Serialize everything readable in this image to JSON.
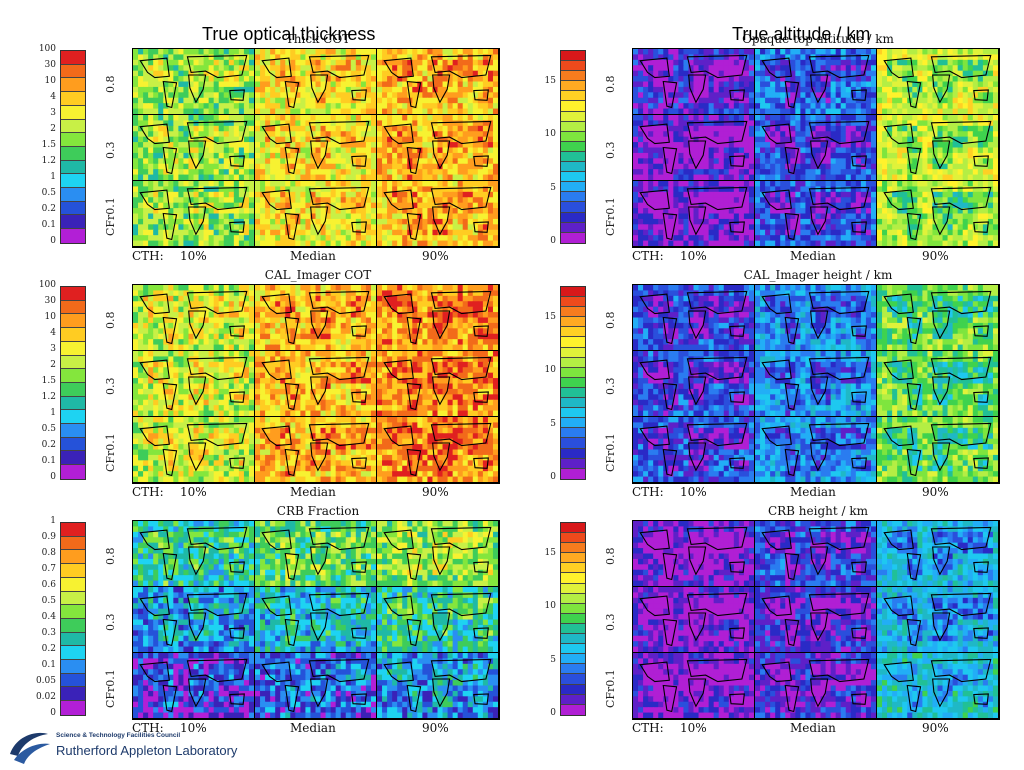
{
  "overlay": {
    "left_title": "True optical thickness",
    "right_title": "True altitude / km"
  },
  "row_labels": [
    "0.8",
    "0.3",
    "CFr0.1"
  ],
  "footer_labels": [
    "CTH:",
    "10%",
    "Median",
    "90%"
  ],
  "logo": {
    "small": "Science & Technology Facilities Council",
    "big": "Rutherford Appleton Laboratory"
  },
  "scales": {
    "cot": {
      "labels": [
        "100",
        "30",
        "10",
        "4",
        "3",
        "2",
        "1.5",
        "1.2",
        "1",
        "0.5",
        "0.2",
        "0.1",
        "0"
      ],
      "colors": [
        "#e02020",
        "#f26a1a",
        "#ff9d1e",
        "#ffcc22",
        "#f7f231",
        "#c8f046",
        "#84e63d",
        "#3ecc5a",
        "#1fb9a6",
        "#1ed3f2",
        "#2a8ef2",
        "#2552d9",
        "#3a22b8",
        "#b21fd6"
      ]
    },
    "height": {
      "labels": [
        "15",
        "10",
        "5",
        "0"
      ],
      "label_values": [
        15,
        10,
        5,
        0
      ],
      "max": 18,
      "colors": [
        "#d8181a",
        "#ee4a1c",
        "#f77c1e",
        "#ffaa22",
        "#ffd024",
        "#fff22c",
        "#e0f23a",
        "#b4ee44",
        "#7ee53e",
        "#3fd24e",
        "#21c096",
        "#1fb8c6",
        "#1ec8f0",
        "#22aef6",
        "#2a7cf0",
        "#2a4fdc",
        "#2a2ac6",
        "#5e20c8",
        "#b01fd4"
      ]
    },
    "fraction": {
      "labels": [
        "1",
        "0.9",
        "0.8",
        "0.7",
        "0.6",
        "0.5",
        "0.4",
        "0.3",
        "0.2",
        "0.1",
        "0.05",
        "0.02",
        "0"
      ],
      "colors": [
        "#e02020",
        "#f26a1a",
        "#ff9d1e",
        "#ffcc22",
        "#f7f231",
        "#c8f046",
        "#84e63d",
        "#3ecc5a",
        "#1fb9a6",
        "#1ed3f2",
        "#2a8ef2",
        "#2552d9",
        "#3a22b8",
        "#b21fd6"
      ]
    }
  },
  "chart_data": [
    {
      "type": "heatmap",
      "title": "Thick COT",
      "colorbar": "cot",
      "rows": [
        "0.8",
        "0.3",
        "CFr0.1"
      ],
      "columns": [
        "10%",
        "Median",
        "90%"
      ],
      "dominant_level": [
        [
          6,
          4,
          3
        ],
        [
          6,
          4,
          3
        ],
        [
          6,
          4,
          3
        ]
      ]
    },
    {
      "type": "heatmap",
      "title": "Opaque top altitude / km",
      "colorbar": "height",
      "rows": [
        "0.8",
        "0.3",
        "CFr0.1"
      ],
      "columns": [
        "10%",
        "Median",
        "90%"
      ],
      "dominant_level": [
        [
          16,
          14,
          6
        ],
        [
          17,
          15,
          6
        ],
        [
          17,
          15,
          7
        ]
      ]
    },
    {
      "type": "heatmap",
      "title": "CAL_Imager COT",
      "colorbar": "cot",
      "rows": [
        "0.8",
        "0.3",
        "CFr0.1"
      ],
      "columns": [
        "10%",
        "Median",
        "90%"
      ],
      "dominant_level": [
        [
          5,
          3,
          2
        ],
        [
          5,
          3,
          2
        ],
        [
          5,
          3,
          2
        ]
      ]
    },
    {
      "type": "heatmap",
      "title": "CAL_Imager height / km",
      "colorbar": "height",
      "rows": [
        "0.8",
        "0.3",
        "CFr0.1"
      ],
      "columns": [
        "10%",
        "Median",
        "90%"
      ],
      "dominant_level": [
        [
          15,
          13,
          8
        ],
        [
          15,
          13,
          8
        ],
        [
          15,
          13,
          8
        ]
      ]
    },
    {
      "type": "heatmap",
      "title": "CRB Fraction",
      "colorbar": "fraction",
      "rows": [
        "0.8",
        "0.3",
        "CFr0.1"
      ],
      "columns": [
        "10%",
        "Median",
        "90%"
      ],
      "dominant_level": [
        [
          8,
          7,
          6
        ],
        [
          10,
          9,
          8
        ],
        [
          12,
          11,
          10
        ]
      ]
    },
    {
      "type": "heatmap",
      "title": "CRB height / km",
      "colorbar": "height",
      "rows": [
        "0.8",
        "0.3",
        "CFr0.1"
      ],
      "columns": [
        "10%",
        "Median",
        "90%"
      ],
      "dominant_level": [
        [
          17,
          15,
          12
        ],
        [
          17,
          16,
          12
        ],
        [
          17,
          16,
          11
        ]
      ]
    }
  ]
}
